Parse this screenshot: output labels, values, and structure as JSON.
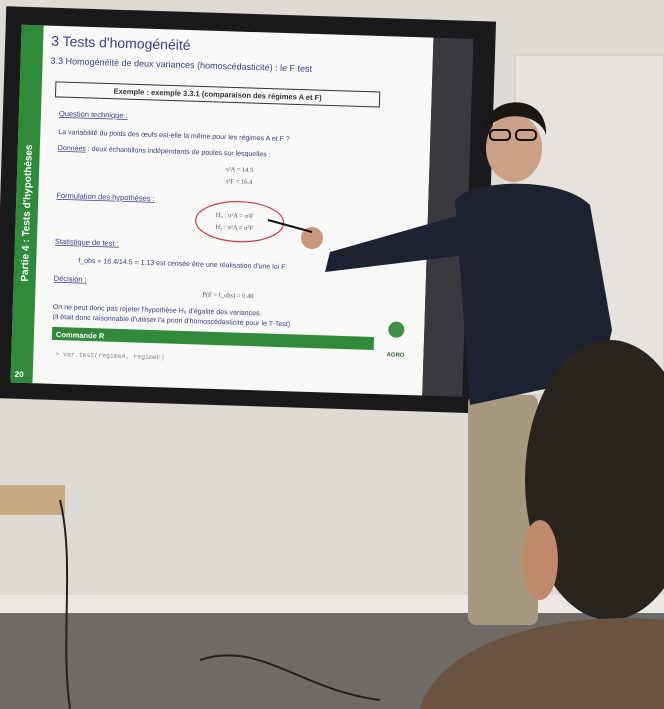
{
  "slide": {
    "sidebar": "Partie 4 : Tests d'hypothèses",
    "page_number": "20",
    "title": "3 Tests d'homogénéité",
    "subtitle": "3.3 Homogénéité de deux variances (homoscédasticité) : le F test",
    "example": "Exemple : exemple 3.3.1 (comparaison des régimes A et F)",
    "question_heading": "Question technique :",
    "question": "La variabilité du poids des œufs est-elle la même pour les régimes A et F ?",
    "data_heading": "Données",
    "data_text": " : deux échantillons indépendants de poules sur lesquelles :",
    "variances": [
      "s²A = 14.5",
      "s²F = 16.4"
    ],
    "hypotheses_heading": "Formulation des hypothèses :",
    "hypotheses": [
      "H₀ : σ²A = σ²F",
      "H₁ : σ²A ≠ σ²F"
    ],
    "statistic_heading": "Statistique de test :",
    "statistic": "f_obs = 16.4/14.5 = 1.13 est censée être une réalisation d'une loi F",
    "decision_heading": "Décision :",
    "decision_formula": "P(F > f_obs) = 0.40",
    "conclusion": [
      "On ne peut donc pas rejeter l'hypothèse H₀ d'égalité des variances.",
      "(Il était donc raisonnable d'utiliser l'a priori d'homoscédasticité pour le T-Test)"
    ],
    "r_heading": "Commande R",
    "r_command": "> var.test(regimeA, regimeF)",
    "logo": "AGRO"
  }
}
